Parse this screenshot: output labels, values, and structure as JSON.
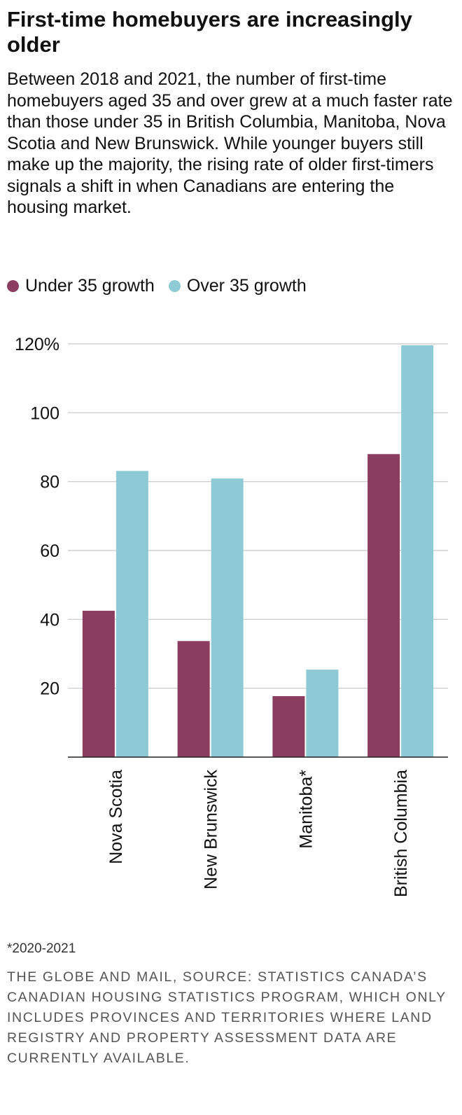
{
  "header": {
    "title": "First-time homebuyers are increasingly older",
    "subtitle": "Between 2018 and 2021, the number of first-time homebuyers aged 35 and over grew at a much faster rate than those under 35 in British Columbia, Manitoba, Nova Scotia and New Brunswick. While younger buyers still make up the majority, the rising rate of older first-timers signals a shift in when Canadians are entering the housing market."
  },
  "legend": [
    {
      "label": "Under 35 growth",
      "color": "#8a3d5e"
    },
    {
      "label": "Over 35 growth",
      "color": "#8ecad5"
    }
  ],
  "chart_data": {
    "type": "bar",
    "categories": [
      "Nova Scotia",
      "New Brunswick",
      "Manitoba*",
      "British Columbia"
    ],
    "series": [
      {
        "name": "Under 35 growth",
        "values": [
          42.5,
          33.7,
          17.7,
          88.0
        ],
        "color": "#8a3d5e"
      },
      {
        "name": "Over 35 growth",
        "values": [
          83.1,
          80.9,
          25.4,
          119.6
        ],
        "color": "#8ecad5"
      }
    ],
    "yticks": [
      {
        "value": 20,
        "label": "20"
      },
      {
        "value": 40,
        "label": "40"
      },
      {
        "value": 60,
        "label": "60"
      },
      {
        "value": 80,
        "label": "80"
      },
      {
        "value": 100,
        "label": "100"
      },
      {
        "value": 120,
        "label": "120%"
      }
    ],
    "ylim": [
      0,
      120
    ],
    "grid": true,
    "legend_position": "top-left"
  },
  "footer": {
    "note": "*2020-2021",
    "source": "The Globe and Mail, Source: Statistics Canada’s Canadian Housing Statistics Program, which only includes provinces and territories where land registry and property assessment data are currently available."
  }
}
